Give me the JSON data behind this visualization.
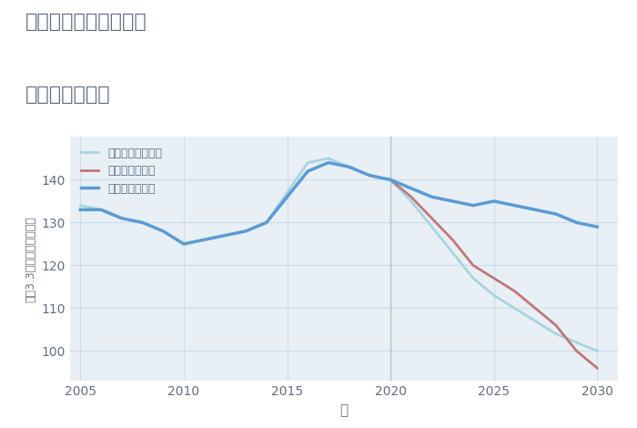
{
  "title_line1": "兵庫県西宮市北口町の",
  "title_line2": "土地の価格推移",
  "xlabel": "年",
  "ylabel": "坪（3.3㎡）単価（万円）",
  "fig_background_color": "#ffffff",
  "plot_bg_color": "#e8f0f5",
  "good_scenario": {
    "label": "グッドシナリオ",
    "color": "#5b9bd5",
    "x": [
      2005,
      2006,
      2007,
      2008,
      2009,
      2010,
      2011,
      2012,
      2013,
      2014,
      2015,
      2016,
      2017,
      2018,
      2019,
      2020,
      2021,
      2022,
      2023,
      2024,
      2025,
      2026,
      2027,
      2028,
      2029,
      2030
    ],
    "y": [
      133,
      133,
      131,
      130,
      128,
      125,
      126,
      127,
      128,
      130,
      136,
      142,
      144,
      143,
      141,
      140,
      138,
      136,
      135,
      134,
      135,
      134,
      133,
      132,
      130,
      129
    ]
  },
  "bad_scenario": {
    "label": "バッドシナリオ",
    "color": "#c0787a",
    "x": [
      2020,
      2021,
      2022,
      2023,
      2024,
      2025,
      2026,
      2027,
      2028,
      2029,
      2030
    ],
    "y": [
      140,
      136,
      131,
      126,
      120,
      117,
      114,
      110,
      106,
      100,
      96
    ]
  },
  "normal_scenario": {
    "label": "ノーマルシナリオ",
    "color": "#a8d4e0",
    "x": [
      2005,
      2006,
      2007,
      2008,
      2009,
      2010,
      2011,
      2012,
      2013,
      2014,
      2015,
      2016,
      2017,
      2018,
      2019,
      2020,
      2021,
      2022,
      2023,
      2024,
      2025,
      2026,
      2027,
      2028,
      2029,
      2030
    ],
    "y": [
      134,
      133,
      131,
      130,
      128,
      125,
      126,
      127,
      128,
      130,
      137,
      144,
      145,
      143,
      141,
      140,
      135,
      129,
      123,
      117,
      113,
      110,
      107,
      104,
      102,
      100
    ]
  },
  "ylim": [
    93,
    150
  ],
  "yticks": [
    100,
    110,
    120,
    130,
    140
  ],
  "xlim": [
    2004.5,
    2031
  ],
  "xticks": [
    2005,
    2010,
    2015,
    2020,
    2025,
    2030
  ],
  "vline_x": 2020,
  "vline_color": "#aec8d6",
  "grid_color": "#ccdde8",
  "title_color": "#607080",
  "axis_color": "#607080"
}
